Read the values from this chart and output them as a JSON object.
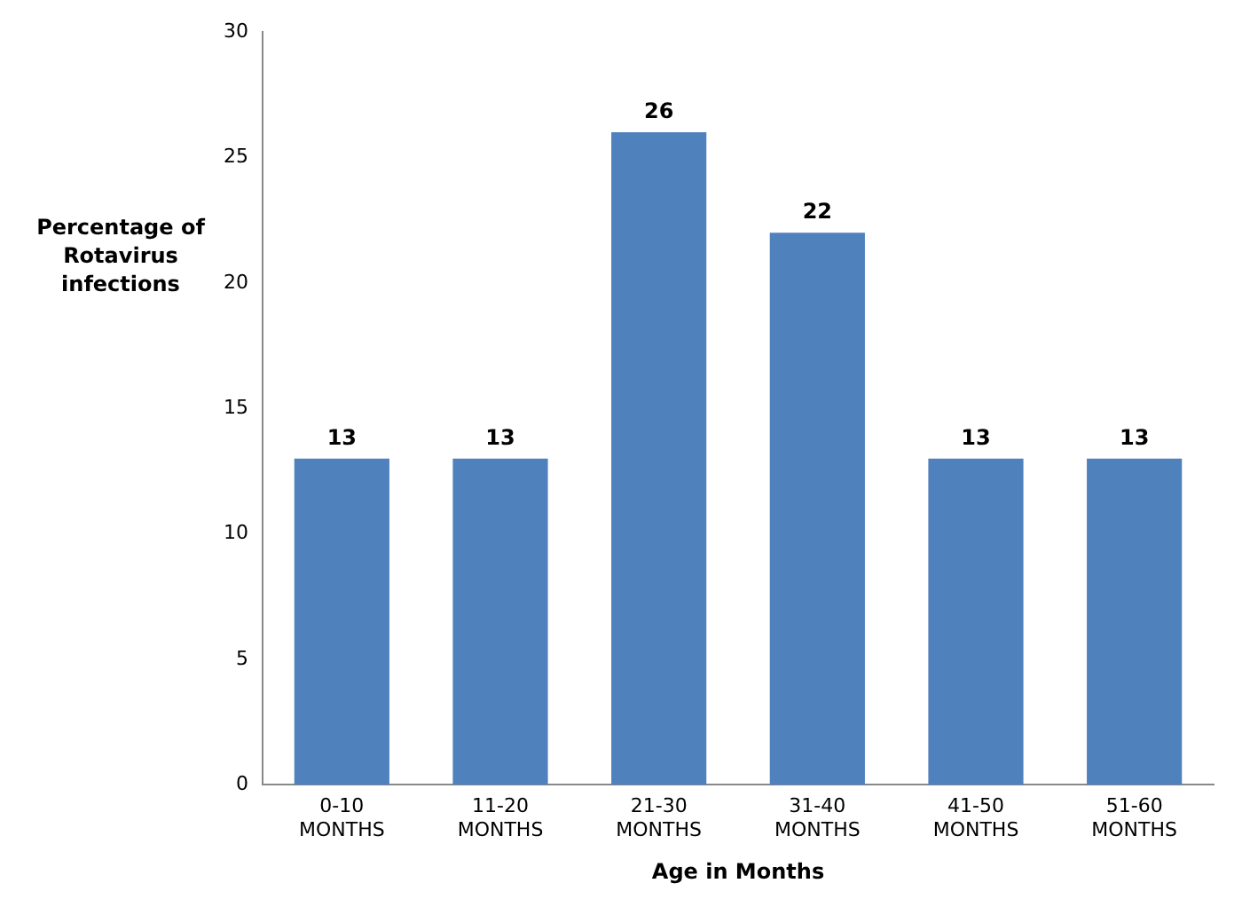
{
  "chart_data": {
    "type": "bar",
    "ylabel": "Percentage  of Rotavirus infections",
    "xlabel": "Age in Months",
    "categories": [
      "0-10 MONTHS",
      "11-20 MONTHS",
      "21-30 MONTHS",
      "31-40 MONTHS",
      "41-50 MONTHS",
      "51-60 MONTHS"
    ],
    "values": [
      13,
      13,
      26,
      22,
      13,
      13
    ],
    "color": "#4f81bd",
    "ylim": [
      0,
      30
    ],
    "yticks": [
      0,
      5,
      10,
      15,
      20,
      25,
      30
    ],
    "grid": false,
    "legend": false,
    "data_labels": true
  }
}
